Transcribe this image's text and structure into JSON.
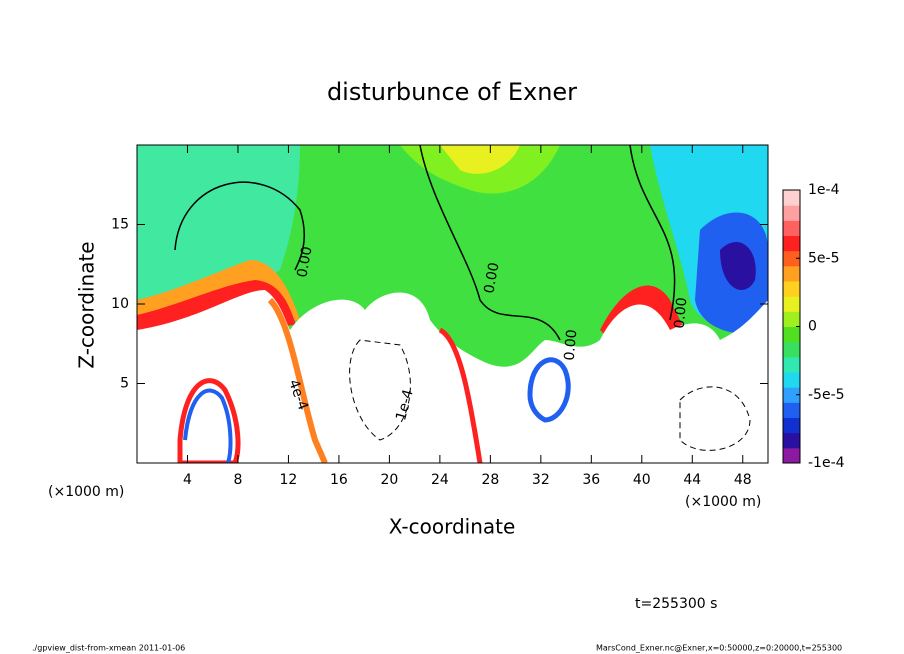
{
  "chart_data": {
    "type": "contour",
    "title": "disturbunce of Exner",
    "x_label": "X-coordinate",
    "y_label": "Z-coordinate",
    "x_unit": "(×1000 m)",
    "x_unit_right": "(×1000 m)",
    "xlim": [
      0,
      50
    ],
    "xticks": [
      4,
      8,
      12,
      16,
      20,
      24,
      28,
      32,
      36,
      40,
      44,
      48
    ],
    "ylim": [
      0,
      20
    ],
    "yticks": [
      5,
      10,
      15
    ],
    "colorbar": {
      "lim": [
        -0.0001,
        0.0001
      ],
      "ticks": [
        {
          "value": 0.0001,
          "label": "1e-4"
        },
        {
          "value": 5e-05,
          "label": "5e-5"
        },
        0,
        {
          "value": -5e-05,
          "label": "-5e-5"
        },
        {
          "value": -0.0001,
          "label": "-1e-4"
        }
      ],
      "colors": [
        "#8c1aa0",
        "#2a10a0",
        "#1030d0",
        "#2060f0",
        "#30a0ff",
        "#20d8f0",
        "#30e8b0",
        "#38e060",
        "#50e020",
        "#a0f020",
        "#e8f020",
        "#ffd020",
        "#ffa020",
        "#ff6020",
        "#ff2020",
        "#ff6060",
        "#ffa0a0",
        "#ffd0d0"
      ]
    },
    "annotations": [
      "0.00",
      "0.00",
      "0.00",
      "0.00",
      "4e-4",
      "1e-4"
    ],
    "time_label": "t=255300 s",
    "footer_left": "./gpview_dist-from-xmean  2011-01-06",
    "footer_right": "MarsCond_Exner.nc@Exner,x=0:50000,z=0:20000,t=255300"
  }
}
